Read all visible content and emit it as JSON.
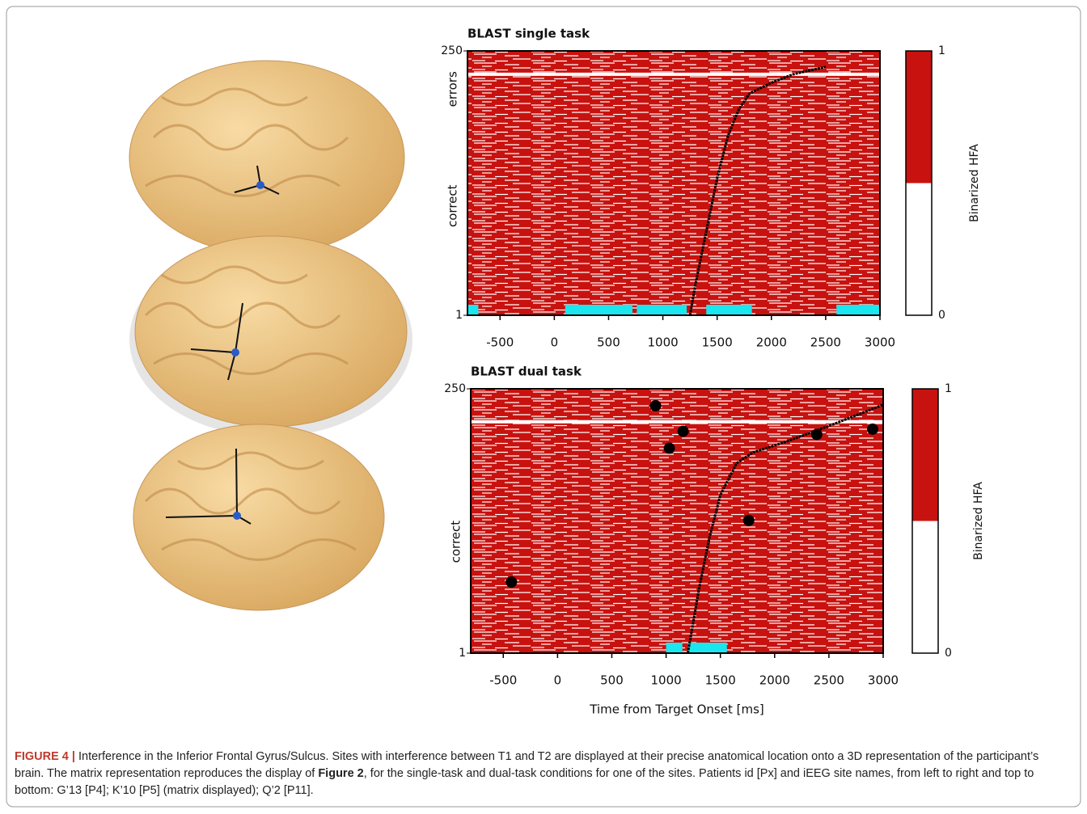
{
  "chart_data": [
    {
      "type": "raster",
      "title": "BLAST single task",
      "title_color": "#2e9a9a",
      "xlim": [
        -800,
        3000
      ],
      "xticks": [
        -500,
        0,
        500,
        1000,
        1500,
        2000,
        2500,
        3000
      ],
      "ylim": [
        1,
        250
      ],
      "yticks": [
        1,
        250
      ],
      "row_labels": [
        {
          "label": "errors",
          "value": 214,
          "color": "#b22222"
        },
        {
          "label": "correct",
          "value": 104,
          "color": "#4a8a2a"
        }
      ],
      "separator": 228,
      "color": "#c8120f",
      "interval_color": "#19e6ee",
      "intervals": [
        [
          -800,
          -700
        ],
        [
          100,
          720
        ],
        [
          760,
          1220
        ],
        [
          1400,
          1820
        ],
        [
          2600,
          3000
        ]
      ],
      "rt": {
        "x": [
          1250,
          1300,
          1400,
          1500,
          1600,
          1700,
          1800,
          2000,
          2200,
          2500
        ],
        "trial": [
          1,
          30,
          80,
          130,
          170,
          195,
          210,
          220,
          228,
          235
        ]
      },
      "colorbar": {
        "label": "Binarized HFA",
        "lim": [
          0,
          1
        ],
        "ticks": [
          0,
          1
        ],
        "split": 0.5
      }
    },
    {
      "type": "raster",
      "title": "BLAST dual task",
      "title_color": "#c8507a",
      "xlim": [
        -800,
        3000
      ],
      "xticks": [
        -500,
        0,
        500,
        1000,
        1500,
        2000,
        2500,
        3000
      ],
      "ylim": [
        1,
        250
      ],
      "yticks": [
        1,
        250
      ],
      "xlabel": "Time from Target Onset [ms]",
      "row_labels": [
        {
          "label": "correct",
          "value": 106,
          "color": "#4a8a2a"
        }
      ],
      "separator": 219,
      "color": "#c8120f",
      "interval_color": "#19e6ee",
      "intervals": [
        [
          1000,
          1150
        ],
        [
          1200,
          1560
        ]
      ],
      "rt": {
        "x": [
          1200,
          1250,
          1300,
          1400,
          1500,
          1650,
          1800,
          2100,
          2500,
          3000
        ],
        "trial": [
          1,
          30,
          60,
          110,
          150,
          180,
          190,
          200,
          215,
          235
        ]
      },
      "points": {
        "x": [
          903,
          1157,
          1030,
          2388,
          2903,
          1761,
          -425
        ],
        "trial": [
          234,
          210,
          194,
          207,
          212,
          126,
          68
        ]
      },
      "colorbar": {
        "label": "Binarized HFA",
        "lim": [
          0,
          1
        ],
        "ticks": [
          0,
          1
        ],
        "split": 0.5
      }
    }
  ],
  "caption": {
    "label": "FIGURE 4 |",
    "text1": "Interference in the Inferior Frontal Gyrus/Sulcus. Sites with interference between T1 and T2 are displayed at their precise anatomical location onto a 3D representation of the participant’s brain. The matrix representation reproduces the display of",
    "bold": "Figure 2",
    "text2": ", for the single-task and dual-task conditions for one of the sites. Patients id [Px] and iEEG site names, from left to right and top to bottom: G’13 [P4]; K’10 [P5] (matrix displayed); Q’2 [P11]."
  }
}
